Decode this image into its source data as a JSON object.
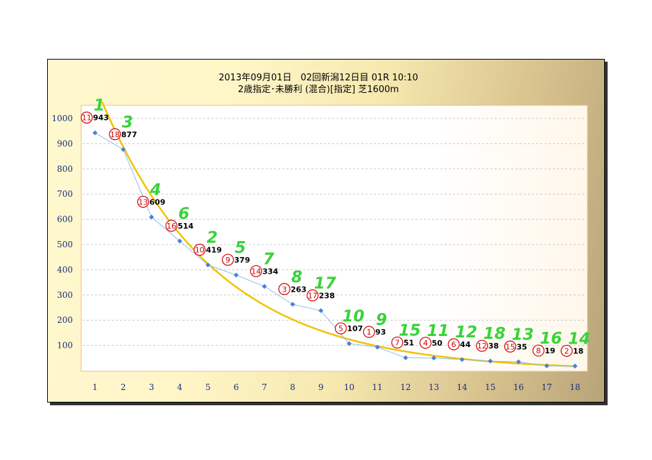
{
  "chart_data": {
    "type": "line",
    "title": "2013年09月01日　02回新潟12日目 01R 10:10",
    "subtitle": "2歳指定･未勝利 (混合)[指定] 芝1600m",
    "x": [
      1,
      2,
      3,
      4,
      5,
      6,
      7,
      8,
      9,
      10,
      11,
      12,
      13,
      14,
      15,
      16,
      17,
      18
    ],
    "ylim": [
      0,
      1050
    ],
    "yticks": [
      100,
      200,
      300,
      400,
      500,
      600,
      700,
      800,
      900,
      1000
    ],
    "grid": true,
    "series": [
      {
        "values": [
          943,
          877,
          609,
          514,
          419,
          379,
          334,
          263,
          238,
          107,
          93,
          51,
          50,
          44,
          38,
          35,
          19,
          18
        ],
        "horse_numbers": [
          "⑪",
          "⑱",
          "⑬",
          "⑯",
          "⑩",
          "⑨",
          "⑭",
          "③",
          "⑰",
          "⑤",
          "①",
          "⑦",
          "④",
          "⑥",
          "⑫",
          "⑮",
          "⑧",
          "②"
        ],
        "ranks": [
          "1",
          "3",
          "4",
          "6",
          "2",
          "5",
          "7",
          "8",
          "17",
          "10",
          "9",
          "15",
          "11",
          "12",
          "18",
          "13",
          "16",
          "14"
        ],
        "color": "#4a7fd8"
      }
    ],
    "trendline": {
      "type": "exponential",
      "color": "#f2c200"
    }
  }
}
